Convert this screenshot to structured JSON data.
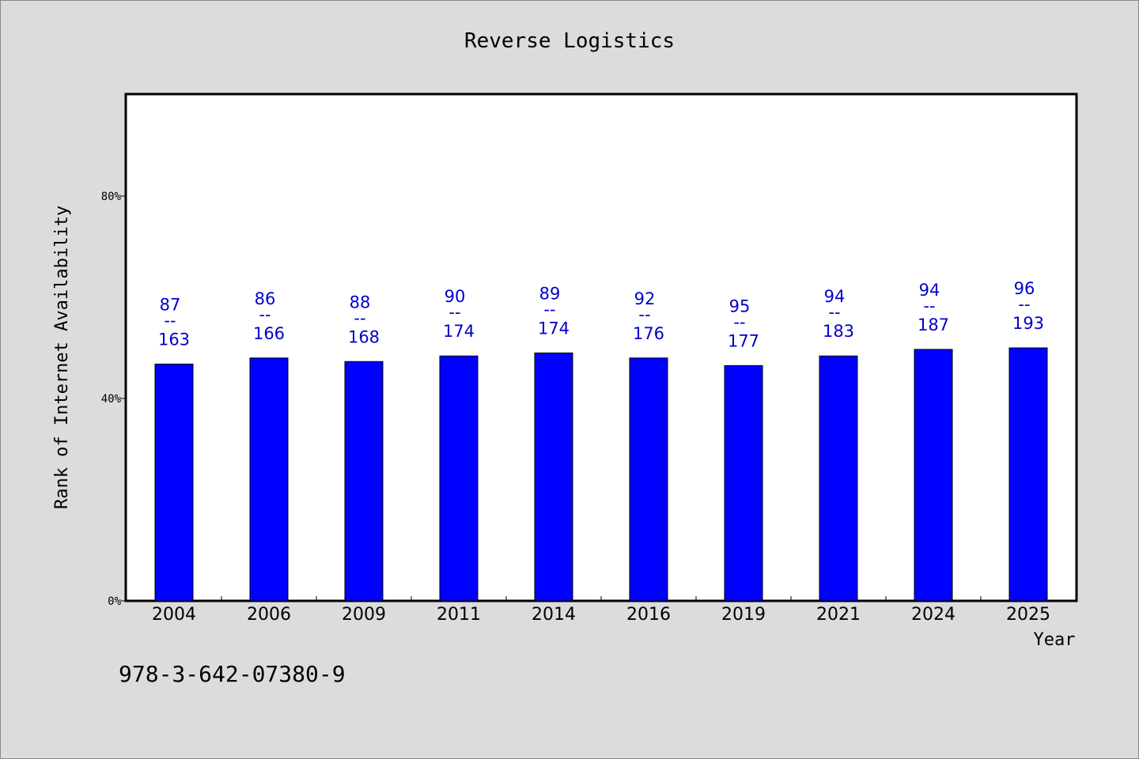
{
  "chart_data": {
    "type": "bar",
    "title": "Reverse Logistics",
    "xlabel": "Year",
    "ylabel": "Rank of Internet Availability",
    "categories": [
      "2004",
      "2006",
      "2009",
      "2011",
      "2014",
      "2016",
      "2019",
      "2021",
      "2024",
      "2025"
    ],
    "series": [
      {
        "values": [
          46.8,
          48.0,
          47.3,
          48.4,
          49.0,
          48.0,
          46.5,
          48.4,
          49.7,
          50.0
        ],
        "data_labels": [
          {
            "top": "87",
            "sep": "--",
            "bottom": "163"
          },
          {
            "top": "86",
            "sep": "--",
            "bottom": "166"
          },
          {
            "top": "88",
            "sep": "--",
            "bottom": "168"
          },
          {
            "top": "90",
            "sep": "--",
            "bottom": "174"
          },
          {
            "top": "89",
            "sep": "--",
            "bottom": "174"
          },
          {
            "top": "92",
            "sep": "--",
            "bottom": "176"
          },
          {
            "top": "95",
            "sep": "--",
            "bottom": "177"
          },
          {
            "top": "94",
            "sep": "--",
            "bottom": "183"
          },
          {
            "top": "94",
            "sep": "--",
            "bottom": "187"
          },
          {
            "top": "96",
            "sep": "--",
            "bottom": "193"
          }
        ]
      }
    ],
    "ylim": [
      0,
      100
    ],
    "yticks": [
      0,
      40,
      80
    ],
    "ytick_labels": [
      "0%",
      "40%",
      "80%"
    ],
    "grid": false,
    "colors": {
      "bar": "#0000ff",
      "label": "#0000cc",
      "background": "#dcdcdc",
      "plot": "#ffffff"
    }
  },
  "footer_text": "978-3-642-07380-9"
}
